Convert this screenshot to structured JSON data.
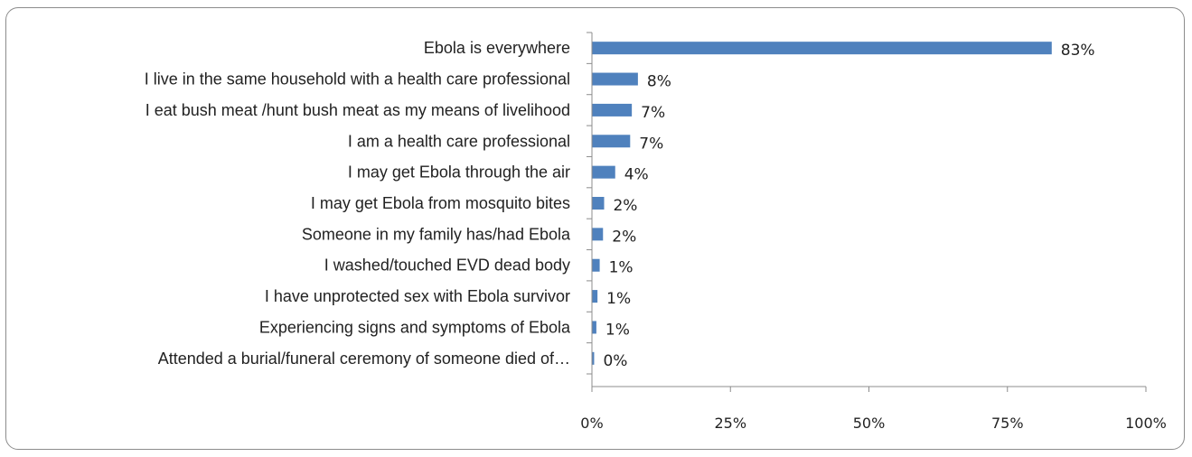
{
  "chart_data": {
    "type": "bar",
    "orientation": "horizontal",
    "categories": [
      "Ebola is everywhere",
      "I live in the same household with a health care professional",
      "I eat bush meat /hunt bush meat as my means of livelihood",
      "I am a health care professional",
      "I may get Ebola through the air",
      "I may get Ebola from mosquito bites",
      "Someone in my family has/had Ebola",
      "I washed/touched EVD dead body",
      "I have unprotected sex with Ebola survivor",
      "Experiencing signs and symptoms of Ebola",
      "Attended a burial/funeral ceremony of someone died of…"
    ],
    "values": [
      83,
      8.3,
      7.2,
      6.9,
      4.2,
      2.2,
      2.0,
      1.4,
      1.0,
      0.8,
      0.4
    ],
    "data_labels": [
      "83%",
      "8%",
      "7%",
      "7%",
      "4%",
      "2%",
      "2%",
      "1%",
      "1%",
      "1%",
      "0%"
    ],
    "xlim": [
      0,
      100
    ],
    "xticks": [
      0,
      25,
      50,
      75,
      100
    ],
    "xtick_labels": [
      "0%",
      "25%",
      "50%",
      "75%",
      "100%"
    ],
    "bar_color": "#4f81bd",
    "grid": false,
    "legend": "none"
  }
}
